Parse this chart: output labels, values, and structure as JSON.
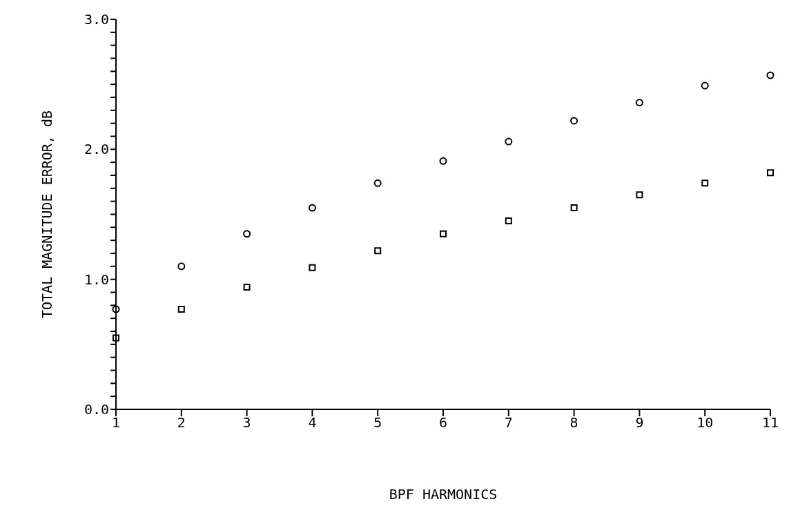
{
  "chart_data": {
    "type": "scatter",
    "xlabel": "BPF HARMONICS",
    "ylabel": "TOTAL MAGNITUDE ERROR, dB",
    "x": [
      1,
      2,
      3,
      4,
      5,
      6,
      7,
      8,
      9,
      10,
      11
    ],
    "series": [
      {
        "color": "#000000",
        "marker": "circle",
        "values": [
          0.77,
          1.1,
          1.35,
          1.55,
          1.74,
          1.91,
          2.06,
          2.22,
          2.36,
          2.49,
          2.57
        ]
      },
      {
        "color": "#000000",
        "marker": "square",
        "values": [
          0.55,
          0.77,
          0.94,
          1.09,
          1.22,
          1.35,
          1.45,
          1.55,
          1.65,
          1.74,
          1.82
        ]
      }
    ],
    "xlim": [
      1,
      11
    ],
    "xticks": [
      1,
      2,
      3,
      4,
      5,
      6,
      7,
      8,
      9,
      10,
      11
    ],
    "ylim": [
      0,
      3
    ],
    "yticks": [
      {
        "value": 0,
        "label": "0.0"
      },
      {
        "value": 0.1,
        "label": null
      },
      {
        "value": 0.2,
        "label": null
      },
      {
        "value": 0.3,
        "label": null
      },
      {
        "value": 0.4,
        "label": null
      },
      {
        "value": 0.5,
        "label": null
      },
      {
        "value": 0.6,
        "label": null
      },
      {
        "value": 0.7,
        "label": null
      },
      {
        "value": 0.8,
        "label": null
      },
      {
        "value": 0.9,
        "label": null
      },
      {
        "value": 1,
        "label": "1.0"
      },
      {
        "value": 1.1,
        "label": null
      },
      {
        "value": 1.2,
        "label": null
      },
      {
        "value": 1.3,
        "label": null
      },
      {
        "value": 1.4,
        "label": null
      },
      {
        "value": 1.5,
        "label": null
      },
      {
        "value": 1.6,
        "label": null
      },
      {
        "value": 1.7,
        "label": null
      },
      {
        "value": 1.8,
        "label": null
      },
      {
        "value": 1.9,
        "label": null
      },
      {
        "value": 2,
        "label": "2.0"
      },
      {
        "value": 2.1,
        "label": null
      },
      {
        "value": 2.2,
        "label": null
      },
      {
        "value": 2.3,
        "label": null
      },
      {
        "value": 2.4,
        "label": null
      },
      {
        "value": 2.5,
        "label": null
      },
      {
        "value": 2.6,
        "label": null
      },
      {
        "value": 2.7,
        "label": null
      },
      {
        "value": 2.8,
        "label": null
      },
      {
        "value": 2.9,
        "label": null
      },
      {
        "value": 3,
        "label": "3.0"
      }
    ],
    "grid": false,
    "legend": false
  }
}
